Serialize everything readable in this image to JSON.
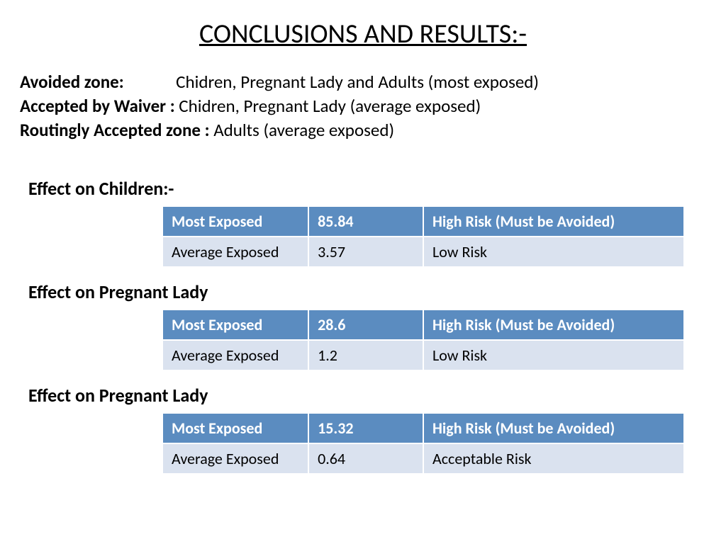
{
  "title": "CONCLUSIONS AND RESULTS:-",
  "zones": [
    {
      "label": "Avoided zone:",
      "spacer": "             ",
      "value": "Chidren, Pregnant Lady and Adults (most exposed)"
    },
    {
      "label": "Accepted by Waiver :",
      "spacer": " ",
      "value": "Chidren, Pregnant Lady (average exposed)"
    },
    {
      "label": "Routingly Accepted zone :",
      "spacer": " ",
      "value": "Adults (average exposed)"
    }
  ],
  "colors": {
    "header_bg": "#5b8cc0",
    "header_fg": "#ffffff",
    "row_bg": "#dae2ef",
    "row_fg": "#000000",
    "page_bg": "#ffffff"
  },
  "tables": [
    {
      "title": "Effect on Children:-",
      "header": [
        "Most Exposed",
        "85.84",
        "High Risk  (Must be Avoided)"
      ],
      "row": [
        "Average Exposed",
        "3.57",
        "Low Risk"
      ]
    },
    {
      "title": "Effect on Pregnant Lady",
      "header": [
        "Most Exposed",
        "28.6",
        "High Risk  (Must be Avoided)"
      ],
      "row": [
        "Average Exposed",
        "1.2",
        "Low Risk"
      ]
    },
    {
      "title": "Effect on Pregnant Lady",
      "header": [
        "Most Exposed",
        "15.32",
        "High Risk (Must be Avoided)"
      ],
      "row": [
        "Average Exposed",
        "0.64",
        "Acceptable Risk"
      ]
    }
  ]
}
